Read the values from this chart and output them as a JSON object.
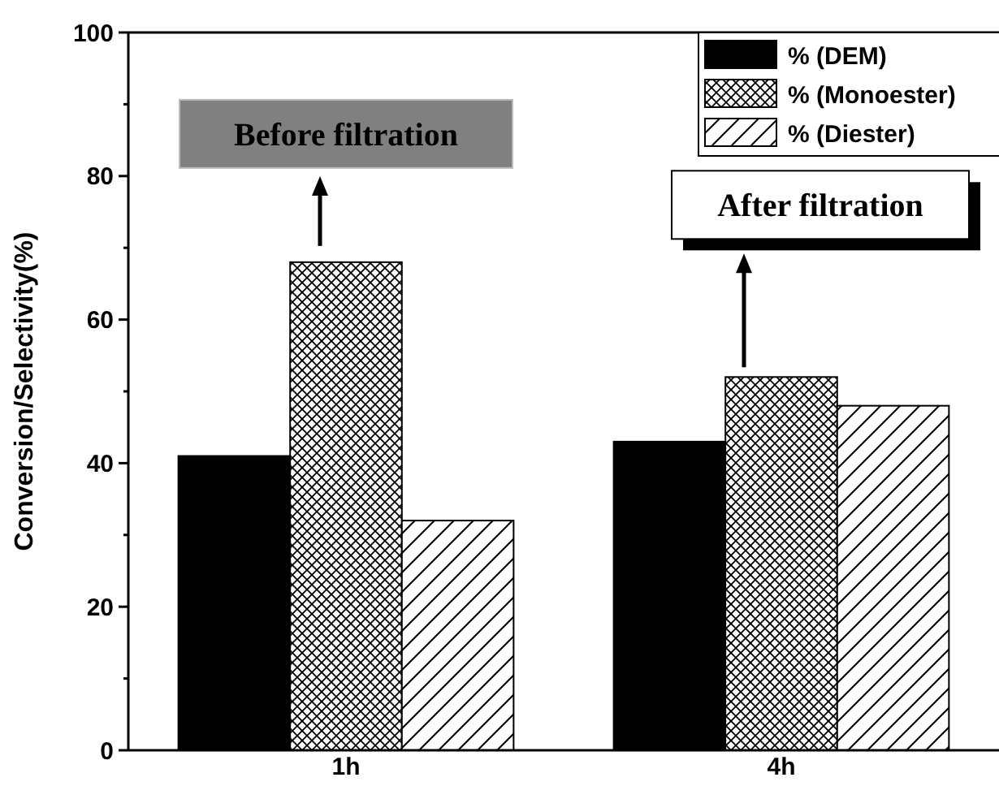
{
  "chart_data": {
    "type": "bar",
    "ylabel": "Conversion/Selectivity(%)",
    "categories": [
      "1h",
      "4h"
    ],
    "series": [
      {
        "name": "% (DEM)",
        "color": "#000000",
        "values": [
          41,
          43
        ]
      },
      {
        "name": "% (Monoester)",
        "color": "#000000",
        "values": [
          68,
          52
        ]
      },
      {
        "name": "% (Diester)",
        "color": "#000000",
        "values": [
          32,
          48
        ]
      }
    ],
    "ylim": [
      0,
      100
    ],
    "yticks": [
      0,
      {
        "value": 10,
        "label": null
      },
      20,
      {
        "value": 30,
        "label": null
      },
      40,
      {
        "value": 50,
        "label": null
      },
      60,
      {
        "value": 70,
        "label": null
      },
      80,
      {
        "value": 90,
        "label": null
      },
      100
    ],
    "annotations": [
      "Before filtration",
      "After filtration"
    ],
    "legend": "top right",
    "grid": false
  }
}
